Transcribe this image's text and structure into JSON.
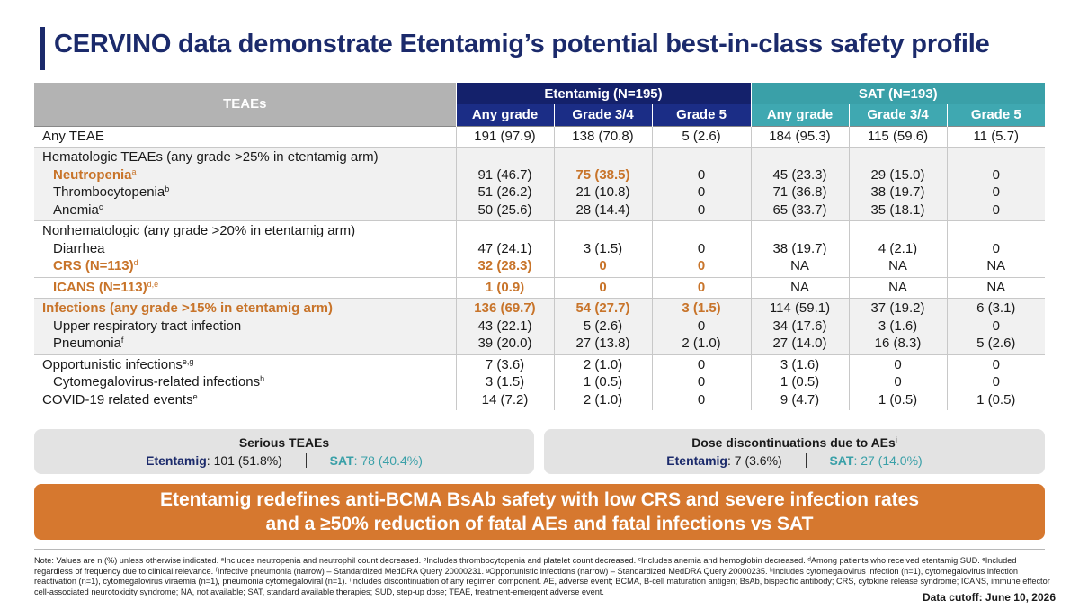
{
  "title": "CERVINO data demonstrate Etentamig’s potential best-in-class safety profile",
  "header": {
    "teae": "TEAEs",
    "etentamig": "Etentamig (N=195)",
    "sat": "SAT (N=193)",
    "sub": [
      "Any grade",
      "Grade 3/4",
      "Grade 5",
      "Any grade",
      "Grade 3/4",
      "Grade 5"
    ]
  },
  "groups": [
    {
      "shade": false,
      "rows": [
        {
          "label": "Any TEAE",
          "sup": "",
          "indent": false,
          "orange": false,
          "values": [
            "191 (97.9)",
            "138 (70.8)",
            "5 (2.6)",
            "184 (95.3)",
            "115 (59.6)",
            "11 (5.7)"
          ]
        }
      ]
    },
    {
      "shade": true,
      "rows": [
        {
          "label": "Hematologic TEAEs (any grade >25% in etentamig arm)",
          "sup": "",
          "indent": false,
          "orange": false,
          "values": [
            "",
            "",
            "",
            "",
            "",
            ""
          ]
        },
        {
          "label": "Neutropenia",
          "sup": "a",
          "indent": true,
          "orange": true,
          "values": [
            "91 (46.7)",
            "75 (38.5)",
            "0",
            "45 (23.3)",
            "29 (15.0)",
            "0"
          ],
          "orange_cols": [
            1
          ]
        },
        {
          "label": "Thrombocytopenia",
          "sup": "b",
          "indent": true,
          "orange": false,
          "values": [
            "51 (26.2)",
            "21 (10.8)",
            "0",
            "71 (36.8)",
            "38 (19.7)",
            "0"
          ]
        },
        {
          "label": "Anemia",
          "sup": "c",
          "indent": true,
          "orange": false,
          "values": [
            "50 (25.6)",
            "28 (14.4)",
            "0",
            "65 (33.7)",
            "35 (18.1)",
            "0"
          ]
        }
      ]
    },
    {
      "shade": false,
      "rows": [
        {
          "label": "Nonhematologic (any grade >20% in etentamig arm)",
          "sup": "",
          "indent": false,
          "orange": false,
          "values": [
            "",
            "",
            "",
            "",
            "",
            ""
          ]
        },
        {
          "label": "Diarrhea",
          "sup": "",
          "indent": true,
          "orange": false,
          "values": [
            "47 (24.1)",
            "3 (1.5)",
            "0",
            "38 (19.7)",
            "4 (2.1)",
            "0"
          ]
        },
        {
          "label": "CRS (N=113)",
          "sup": "d",
          "indent": true,
          "orange": true,
          "values": [
            "32 (28.3)",
            "0",
            "0",
            "NA",
            "NA",
            "NA"
          ],
          "orange_cols": [
            0,
            1,
            2
          ]
        }
      ]
    },
    {
      "shade": false,
      "rows": [
        {
          "label": "ICANS (N=113)",
          "sup": "d,e",
          "indent": true,
          "orange": true,
          "values": [
            "1 (0.9)",
            "0",
            "0",
            "NA",
            "NA",
            "NA"
          ],
          "orange_cols": [
            0,
            1,
            2
          ]
        }
      ]
    },
    {
      "shade": true,
      "rows": [
        {
          "label": "Infections (any grade >15% in etentamig arm)",
          "sup": "",
          "indent": false,
          "orange": true,
          "values": [
            "136 (69.7)",
            "54 (27.7)",
            "3 (1.5)",
            "114 (59.1)",
            "37 (19.2)",
            "6 (3.1)"
          ],
          "orange_cols": [
            0,
            1,
            2
          ]
        },
        {
          "label": "Upper respiratory tract infection",
          "sup": "",
          "indent": true,
          "orange": false,
          "values": [
            "43 (22.1)",
            "5 (2.6)",
            "0",
            "34 (17.6)",
            "3 (1.6)",
            "0"
          ]
        },
        {
          "label": "Pneumonia",
          "sup": "f",
          "indent": true,
          "orange": false,
          "values": [
            "39 (20.0)",
            "27 (13.8)",
            "2 (1.0)",
            "27 (14.0)",
            "16 (8.3)",
            "5 (2.6)"
          ]
        }
      ]
    },
    {
      "shade": false,
      "rows": [
        {
          "label": "Opportunistic infections",
          "sup": "e,g",
          "indent": false,
          "orange": false,
          "values": [
            "7 (3.6)",
            "2 (1.0)",
            "0",
            "3 (1.6)",
            "0",
            "0"
          ]
        },
        {
          "label": "Cytomegalovirus-related infections",
          "sup": "h",
          "indent": true,
          "orange": false,
          "values": [
            "3 (1.5)",
            "1 (0.5)",
            "0",
            "1 (0.5)",
            "0",
            "0"
          ]
        },
        {
          "label": "COVID-19 related events",
          "sup": "e",
          "indent": false,
          "orange": false,
          "values": [
            "14 (7.2)",
            "2 (1.0)",
            "0",
            "9 (4.7)",
            "1 (0.5)",
            "1 (0.5)"
          ]
        }
      ]
    }
  ],
  "serious_box": {
    "title": "Serious TEAEs",
    "ete_name": "Etentamig",
    "ete_value": ": 101 (51.8%)",
    "sat_name": "SAT",
    "sat_value": ": 78 (40.4%)"
  },
  "dose_box": {
    "title": "Dose discontinuations due to AEs",
    "title_sup": "i",
    "ete_name": "Etentamig",
    "ete_value": ": 7 (3.6%)",
    "sat_name": "SAT",
    "sat_value": ": 27 (14.0%)"
  },
  "banner": {
    "line1": "Etentamig redefines anti-BCMA BsAb safety with low CRS and severe infection rates",
    "line2": "and a ≥50% reduction of fatal AEs and fatal infections vs SAT"
  },
  "notes": "Note: Values are n (%) unless otherwise indicated. ᵃIncludes neutropenia and neutrophil count decreased. ᵇIncludes thrombocytopenia and platelet count decreased. ᶜIncludes anemia and hemoglobin decreased. ᵈAmong patients who received etentamig SUD. ᵉIncluded regardless of frequency due to clinical relevance. ᶠInfective pneumonia (narrow) – Standardized MedDRA Query 20000231. ᵍOpportunistic infections (narrow) – Standardized MedDRA Query 20000235. ʰIncludes cytomegalovirus infection (n=1), cytomegalovirus infection reactivation (n=1), cytomegalovirus viraemia (n=1), pneumonia cytomegaloviral (n=1). ⁱIncludes discontinuation of any regimen component. AE, adverse event; BCMA, B-cell maturation antigen; BsAb, bispecific antibody; CRS, cytokine release syndrome; ICANS, immune effector cell-associated neurotoxicity syndrome; NA, not available; SAT, standard available therapies; SUD, step-up dose; TEAE, treatment-emergent adverse event.",
  "cutoff": "Data cutoff: June 10, 2026",
  "colors": {
    "navy": "#1b2a6b",
    "etentamig_header": "#14216b",
    "sat_header": "#3aa0a8",
    "orange": "#d6782f",
    "table_header_gray": "#b3b3b3"
  }
}
